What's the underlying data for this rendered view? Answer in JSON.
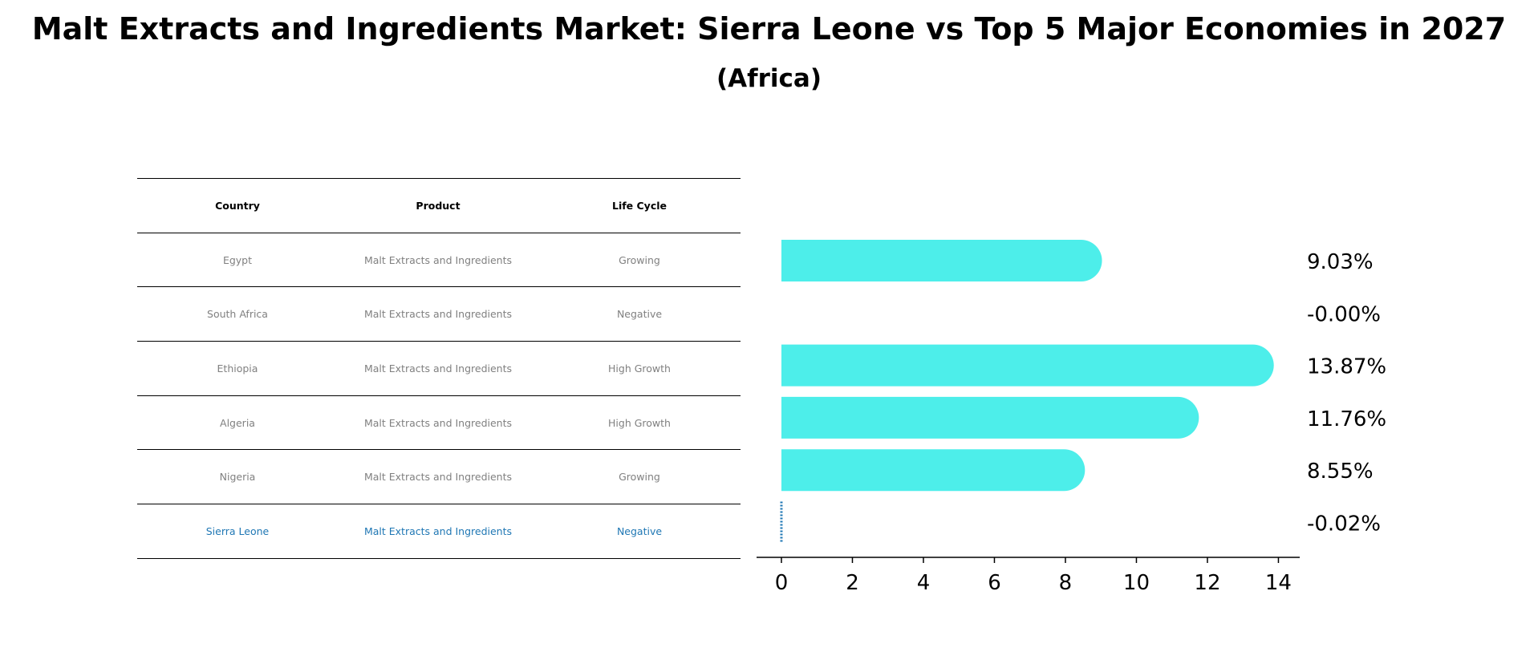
{
  "title": "Malt Extracts and Ingredients Market: Sierra Leone vs Top 5 Major Economies in 2027",
  "subtitle": "(Africa)",
  "table": {
    "headers": [
      "Country",
      "Product",
      "Life Cycle"
    ],
    "rows": [
      {
        "country": "Egypt",
        "product": "Malt Extracts and Ingredients",
        "life_cycle": "Growing"
      },
      {
        "country": "South Africa",
        "product": "Malt Extracts and Ingredients",
        "life_cycle": "Negative"
      },
      {
        "country": "Ethiopia",
        "product": "Malt Extracts and Ingredients",
        "life_cycle": "High Growth"
      },
      {
        "country": "Algeria",
        "product": "Malt Extracts and Ingredients",
        "life_cycle": "High Growth"
      },
      {
        "country": "Nigeria",
        "product": "Malt Extracts and Ingredients",
        "life_cycle": "Growing"
      },
      {
        "country": "Sierra Leone",
        "product": "Malt Extracts and Ingredients",
        "life_cycle": "Negative"
      }
    ]
  },
  "chart_data": {
    "type": "bar",
    "orientation": "horizontal",
    "categories": [
      "Egypt",
      "South Africa",
      "Ethiopia",
      "Algeria",
      "Nigeria",
      "Sierra Leone"
    ],
    "values": [
      9.03,
      -0.0,
      13.87,
      11.76,
      8.55,
      -0.02
    ],
    "labels": [
      "9.03%",
      "-0.00%",
      "13.87%",
      "11.76%",
      "8.55%",
      "-0.02%"
    ],
    "highlight": "Sierra Leone",
    "xlim": [
      -0.7,
      14.6
    ],
    "xticks": [
      0,
      2,
      4,
      6,
      8,
      10,
      12,
      14
    ],
    "xtick_labels": [
      "0",
      "2",
      "4",
      "6",
      "8",
      "10",
      "12",
      "14"
    ],
    "bar_color": "#4deeea",
    "highlight_color": "#1f77b4",
    "text_color_table": "#808080"
  }
}
